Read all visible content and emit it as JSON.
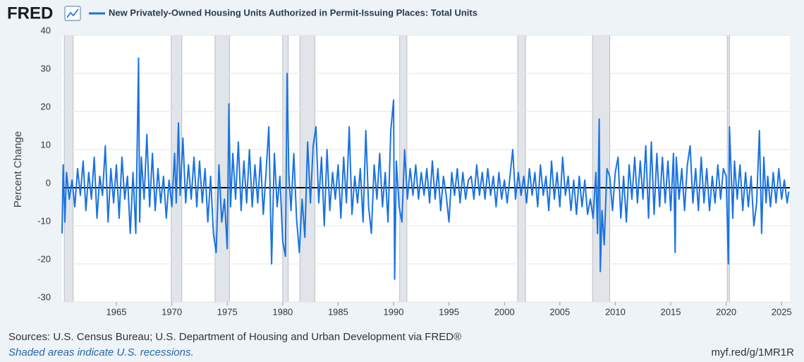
{
  "chart_data": {
    "type": "line",
    "logo": "FRED",
    "y_label": "Percent Change",
    "sources": "Sources: U.S. Census Bureau; U.S. Department of Housing and Urban Development via FRED®",
    "note": "Shaded areas indicate U.S. recessions.",
    "link": "myf.red/g/1MR1R",
    "xlim": [
      1960.1,
      2025.75
    ],
    "ylim": [
      -30,
      40
    ],
    "xticks": [
      1965,
      1970,
      1975,
      1980,
      1985,
      1990,
      1995,
      2000,
      2005,
      2010,
      2015,
      2020,
      2025
    ],
    "yticks": [
      -30,
      -20,
      -10,
      0,
      10,
      20,
      30,
      40
    ],
    "grid": true,
    "recessions": [
      [
        1960.3,
        1961.1
      ],
      [
        1969.95,
        1970.9
      ],
      [
        1973.9,
        1975.2
      ],
      [
        1980.0,
        1980.5
      ],
      [
        1981.55,
        1982.9
      ],
      [
        1990.55,
        1991.2
      ],
      [
        2001.2,
        2001.9
      ],
      [
        2007.95,
        2009.5
      ],
      [
        2020.1,
        2020.3
      ]
    ],
    "x": [
      1960.1,
      1960.2,
      1960.35,
      1960.5,
      1960.75,
      1961.0,
      1961.25,
      1961.5,
      1961.75,
      1962.0,
      1962.25,
      1962.5,
      1962.75,
      1963.0,
      1963.25,
      1963.5,
      1963.75,
      1964.0,
      1964.25,
      1964.5,
      1964.75,
      1965.0,
      1965.25,
      1965.5,
      1965.75,
      1966.0,
      1966.25,
      1966.5,
      1966.75,
      1967.0,
      1967.1,
      1967.25,
      1967.5,
      1967.75,
      1968.0,
      1968.25,
      1968.5,
      1968.75,
      1969.0,
      1969.25,
      1969.5,
      1969.75,
      1970.0,
      1970.25,
      1970.4,
      1970.6,
      1970.75,
      1971.0,
      1971.25,
      1971.5,
      1971.75,
      1972.0,
      1972.25,
      1972.5,
      1972.75,
      1973.0,
      1973.25,
      1973.5,
      1973.75,
      1974.0,
      1974.25,
      1974.5,
      1974.75,
      1975.0,
      1975.15,
      1975.3,
      1975.5,
      1975.75,
      1976.0,
      1976.25,
      1976.5,
      1976.75,
      1977.0,
      1977.25,
      1977.5,
      1977.75,
      1978.0,
      1978.25,
      1978.5,
      1978.75,
      1979.0,
      1979.25,
      1979.5,
      1979.75,
      1980.0,
      1980.25,
      1980.4,
      1980.55,
      1980.75,
      1981.0,
      1981.25,
      1981.5,
      1981.75,
      1982.0,
      1982.25,
      1982.5,
      1982.75,
      1983.0,
      1983.25,
      1983.5,
      1983.75,
      1984.0,
      1984.25,
      1984.5,
      1984.75,
      1985.0,
      1985.25,
      1985.5,
      1985.75,
      1986.0,
      1986.25,
      1986.5,
      1986.75,
      1987.0,
      1987.25,
      1987.5,
      1987.75,
      1988.0,
      1988.25,
      1988.5,
      1988.75,
      1989.0,
      1989.25,
      1989.5,
      1989.75,
      1990.0,
      1990.1,
      1990.25,
      1990.5,
      1990.75,
      1991.0,
      1991.25,
      1991.5,
      1991.75,
      1992.0,
      1992.25,
      1992.5,
      1992.75,
      1993.0,
      1993.25,
      1993.5,
      1993.75,
      1994.0,
      1994.25,
      1994.5,
      1994.75,
      1995.0,
      1995.25,
      1995.5,
      1995.75,
      1996.0,
      1996.25,
      1996.5,
      1996.75,
      1997.0,
      1997.25,
      1997.5,
      1997.75,
      1998.0,
      1998.25,
      1998.5,
      1998.75,
      1999.0,
      1999.25,
      1999.5,
      1999.75,
      2000.0,
      2000.25,
      2000.5,
      2000.75,
      2001.0,
      2001.25,
      2001.5,
      2001.75,
      2002.0,
      2002.25,
      2002.5,
      2002.75,
      2003.0,
      2003.25,
      2003.5,
      2003.75,
      2004.0,
      2004.25,
      2004.5,
      2004.75,
      2005.0,
      2005.25,
      2005.5,
      2005.75,
      2006.0,
      2006.25,
      2006.5,
      2006.75,
      2007.0,
      2007.25,
      2007.5,
      2007.75,
      2008.0,
      2008.25,
      2008.4,
      2008.55,
      2008.65,
      2008.8,
      2009.0,
      2009.25,
      2009.5,
      2009.75,
      2010.0,
      2010.25,
      2010.5,
      2010.75,
      2011.0,
      2011.25,
      2011.5,
      2011.75,
      2012.0,
      2012.25,
      2012.5,
      2012.75,
      2013.0,
      2013.25,
      2013.5,
      2013.75,
      2014.0,
      2014.25,
      2014.5,
      2014.75,
      2015.0,
      2015.25,
      2015.4,
      2015.5,
      2015.75,
      2016.0,
      2016.25,
      2016.5,
      2016.75,
      2017.0,
      2017.25,
      2017.5,
      2017.75,
      2018.0,
      2018.25,
      2018.5,
      2018.75,
      2019.0,
      2019.25,
      2019.5,
      2019.75,
      2020.0,
      2020.2,
      2020.3,
      2020.45,
      2020.6,
      2020.75,
      2021.0,
      2021.25,
      2021.5,
      2021.75,
      2022.0,
      2022.25,
      2022.5,
      2022.75,
      2023.0,
      2023.2,
      2023.4,
      2023.6,
      2023.75,
      2024.0,
      2024.25,
      2024.5,
      2024.75,
      2025.0,
      2025.25,
      2025.5,
      2025.65
    ],
    "series": [
      {
        "name": "New Privately-Owned Housing Units Authorized in Permit-Issuing Places: Total Units",
        "color": "#1a73e0",
        "values": [
          -12,
          6,
          -9,
          4,
          -3,
          2,
          -5,
          5,
          -2,
          7,
          -6,
          4,
          -3,
          8,
          -8,
          3,
          -2,
          11,
          -9,
          5,
          -4,
          6,
          -8,
          8,
          -3,
          3,
          -12,
          4,
          -12,
          34,
          -9,
          8,
          -3,
          14,
          -5,
          9,
          -6,
          5,
          -4,
          3,
          -8,
          2,
          -5,
          9,
          -4,
          17,
          -2,
          13,
          -4,
          6,
          -3,
          8,
          -5,
          7,
          -4,
          5,
          -9,
          3,
          -12,
          -17,
          6,
          -9,
          -3,
          -16,
          22,
          -5,
          9,
          -3,
          12,
          -6,
          7,
          -4,
          10,
          -5,
          6,
          -4,
          8,
          -7,
          4,
          16,
          -20,
          9,
          -5,
          3,
          -14,
          -18,
          30,
          4,
          -6,
          9,
          -8,
          -17,
          -3,
          -13,
          12,
          -4,
          11,
          16,
          -4,
          8,
          -10,
          10,
          -6,
          4,
          -3,
          6,
          -8,
          8,
          -4,
          16,
          -7,
          3,
          -4,
          5,
          -9,
          15,
          -5,
          -12,
          6,
          -3,
          9,
          -5,
          4,
          -9,
          15,
          23,
          -24,
          7,
          -5,
          -9,
          10,
          -3,
          5,
          -2,
          6,
          -3,
          4,
          -2,
          5,
          -4,
          7,
          -3,
          5,
          -6,
          3,
          -2,
          -9,
          4,
          -2,
          5,
          -4,
          4,
          -3,
          2,
          3,
          -3,
          6,
          -2,
          4,
          -3,
          5,
          -2,
          3,
          -5,
          4,
          -3,
          2,
          -4,
          3,
          10,
          -3,
          4,
          -2,
          3,
          -4,
          5,
          -2,
          4,
          -5,
          6,
          -2,
          3,
          -6,
          7,
          -3,
          4,
          -5,
          8,
          -2,
          3,
          -6,
          2,
          -7,
          3,
          -5,
          2,
          -7,
          -3,
          -8,
          4,
          -12,
          18,
          -22,
          -6,
          -15,
          5,
          3,
          -6,
          4,
          8,
          -8,
          3,
          -9,
          6,
          -3,
          8,
          -4,
          7,
          -3,
          11,
          -8,
          12,
          -7,
          9,
          -5,
          8,
          -4,
          7,
          -6,
          9,
          -17,
          8,
          -3,
          5,
          -6,
          6,
          11,
          -4,
          5,
          -6,
          8,
          -4,
          5,
          -6,
          3,
          -4,
          6,
          -3,
          5,
          3,
          -20,
          16,
          4,
          -8,
          7,
          -3,
          6,
          -6,
          4,
          -5,
          3,
          -10,
          -4,
          15,
          -12,
          8,
          -4,
          3,
          -5,
          4,
          -4,
          5,
          -3,
          2,
          -4,
          -1
        ]
      }
    ]
  }
}
